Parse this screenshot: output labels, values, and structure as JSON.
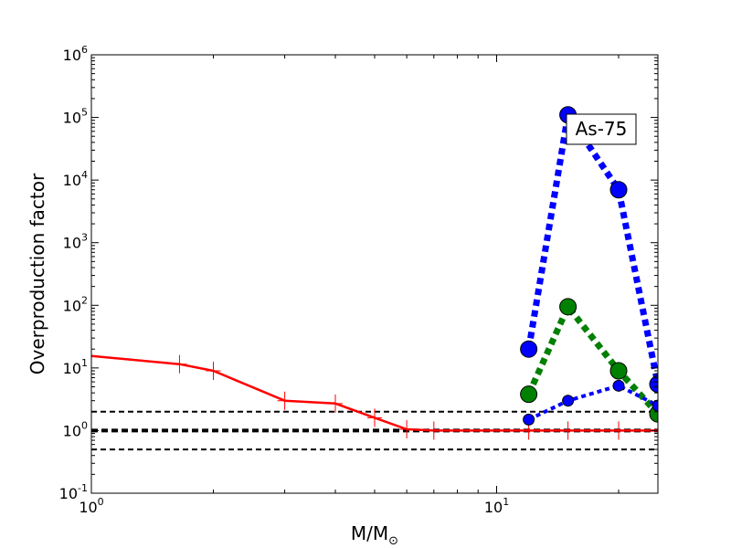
{
  "chart_data": {
    "type": "line",
    "xlabel_main": "M/M",
    "xlabel_sub": "⊙",
    "ylabel": "Overproduction factor",
    "x_scale": "log",
    "y_scale": "log",
    "xlim": [
      1,
      25
    ],
    "ylim": [
      0.1,
      1000000
    ],
    "x_ticks": [
      {
        "value": 1,
        "base": "10",
        "exp": "0"
      },
      {
        "value": 10,
        "base": "10",
        "exp": "1"
      }
    ],
    "y_ticks": [
      {
        "value": 0.1,
        "base": "10",
        "exp": "-1"
      },
      {
        "value": 1,
        "base": "10",
        "exp": "0"
      },
      {
        "value": 10,
        "base": "10",
        "exp": "1"
      },
      {
        "value": 100,
        "base": "10",
        "exp": "2"
      },
      {
        "value": 1000,
        "base": "10",
        "exp": "3"
      },
      {
        "value": 10000,
        "base": "10",
        "exp": "4"
      },
      {
        "value": 100000,
        "base": "10",
        "exp": "5"
      },
      {
        "value": 1000000,
        "base": "10",
        "exp": "6"
      }
    ],
    "annotation": "As-75",
    "grid": false,
    "reference_lines": [
      {
        "y": 2,
        "color": "#000000",
        "style": "dashed",
        "weight": "thin"
      },
      {
        "y": 1,
        "color": "#000000",
        "style": "dashed",
        "weight": "thick"
      },
      {
        "y": 0.5,
        "color": "#000000",
        "style": "dashed",
        "weight": "thin"
      }
    ],
    "series": [
      {
        "color": "#ff0000",
        "line": "solid",
        "marker": "plus",
        "points": [
          {
            "x": 1,
            "y": 15.5
          },
          {
            "x": 1.65,
            "y": 11.5
          },
          {
            "x": 2,
            "y": 9.0
          },
          {
            "x": 3,
            "y": 3.0
          },
          {
            "x": 4,
            "y": 2.7
          },
          {
            "x": 5,
            "y": 1.6
          },
          {
            "x": 6,
            "y": 1.05
          },
          {
            "x": 7,
            "y": 1.0
          },
          {
            "x": 12,
            "y": 1.0
          },
          {
            "x": 15,
            "y": 1.0
          },
          {
            "x": 20,
            "y": 1.0
          },
          {
            "x": 25,
            "y": 1.0
          }
        ]
      },
      {
        "color": "#0000ff",
        "line": "dotted-thick",
        "marker": "circle-large",
        "points": [
          {
            "x": 12,
            "y": 20
          },
          {
            "x": 15,
            "y": 110000
          },
          {
            "x": 20,
            "y": 7000
          },
          {
            "x": 25,
            "y": 5.5
          }
        ]
      },
      {
        "color": "#008000",
        "line": "dotted-medium",
        "marker": "circle-large",
        "points": [
          {
            "x": 12,
            "y": 3.8
          },
          {
            "x": 15,
            "y": 95
          },
          {
            "x": 20,
            "y": 9.0
          },
          {
            "x": 25,
            "y": 1.85
          }
        ]
      },
      {
        "color": "#0000ff",
        "line": "dotted-thin",
        "marker": "circle-small",
        "points": [
          {
            "x": 12,
            "y": 1.5
          },
          {
            "x": 15,
            "y": 3.0
          },
          {
            "x": 20,
            "y": 5.2
          },
          {
            "x": 25,
            "y": 2.5
          }
        ]
      }
    ]
  }
}
